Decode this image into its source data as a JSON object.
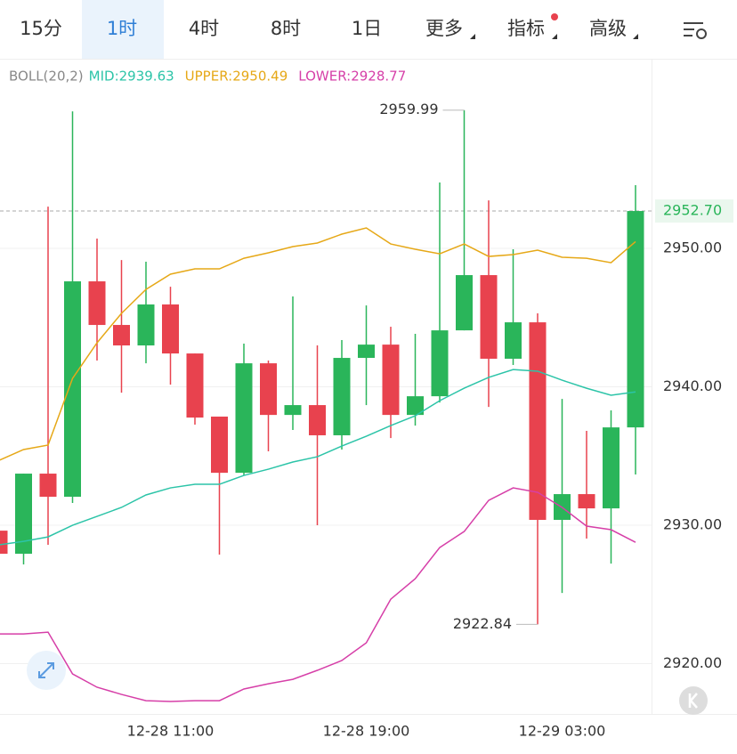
{
  "tabs": [
    "15分",
    "1时",
    "4时",
    "8时",
    "1日",
    "更多",
    "指标",
    "高级"
  ],
  "chart_data": {
    "type": "candlestick",
    "indicator": "BOLL(20,2)",
    "categories": [
      null,
      null,
      null,
      null,
      null,
      null,
      null,
      "12-28 11:00",
      null,
      null,
      null,
      null,
      null,
      null,
      null,
      "12-28 19:00",
      null,
      null,
      null,
      null,
      null,
      null,
      null,
      "12-29 03:00",
      null,
      null,
      null
    ],
    "open": [
      2929.61,
      2927.94,
      2933.73,
      2932.06,
      2947.62,
      2944.47,
      2942.99,
      2945.95,
      2942.41,
      2937.85,
      2933.79,
      2941.7,
      2937.97,
      2938.68,
      2936.5,
      2942.09,
      2943.05,
      2937.97,
      2939.32,
      2944.08,
      2948.07,
      2942.03,
      2944.66,
      2930.39,
      2932.25,
      2931.22,
      2937.07
    ],
    "high": [
      2933.86,
      2933.73,
      2953.02,
      2959.9,
      2950.71,
      2949.16,
      2949.04,
      2947.23,
      2942.41,
      2937.85,
      2943.12,
      2941.9,
      2946.53,
      2942.99,
      2943.38,
      2945.88,
      2944.34,
      2943.83,
      2954.76,
      2959.99,
      2953.47,
      2949.94,
      2945.31,
      2939.13,
      2936.82,
      2938.3,
      2954.57
    ],
    "low": [
      2927.94,
      2927.17,
      2928.59,
      2931.61,
      2941.9,
      2939.58,
      2941.7,
      2940.16,
      2937.27,
      2927.88,
      2933.6,
      2935.34,
      2936.88,
      2930.0,
      2935.47,
      2938.68,
      2936.3,
      2937.2,
      2938.87,
      2944.08,
      2938.55,
      2941.58,
      2922.84,
      2925.11,
      2929.04,
      2927.23,
      2933.67
    ],
    "close": [
      2927.94,
      2933.73,
      2932.06,
      2947.62,
      2944.47,
      2942.99,
      2945.95,
      2942.41,
      2937.78,
      2933.79,
      2941.7,
      2937.97,
      2938.68,
      2936.5,
      2942.09,
      2943.05,
      2937.97,
      2939.32,
      2944.08,
      2948.07,
      2942.03,
      2944.66,
      2930.39,
      2932.25,
      2931.22,
      2937.07,
      2952.7
    ],
    "up_color": "#2ab55a",
    "down_color": "#e8424e",
    "series": [
      {
        "name": "MID:2939.63",
        "color": "#2cc4a8",
        "values": [
          2928.59,
          2928.84,
          2929.16,
          2930.0,
          2930.64,
          2931.29,
          2932.19,
          2932.7,
          2932.96,
          2932.96,
          2933.6,
          2934.05,
          2934.57,
          2934.95,
          2935.72,
          2936.43,
          2937.2,
          2937.91,
          2939.0,
          2939.9,
          2940.68,
          2941.25,
          2941.13,
          2940.48,
          2939.9,
          2939.39,
          2939.63
        ]
      },
      {
        "name": "UPPER:2950.49",
        "color": "#e6a817",
        "values": [
          2934.69,
          2935.47,
          2935.79,
          2940.61,
          2943.18,
          2945.31,
          2947.04,
          2948.14,
          2948.52,
          2948.52,
          2949.29,
          2949.68,
          2950.13,
          2950.39,
          2951.03,
          2951.48,
          2950.32,
          2949.94,
          2949.61,
          2950.32,
          2949.42,
          2949.55,
          2949.87,
          2949.36,
          2949.29,
          2948.97,
          2950.49
        ]
      },
      {
        "name": "LOWER:2928.77",
        "color": "#d63fa8",
        "values": [
          2922.15,
          2922.15,
          2922.28,
          2919.26,
          2918.3,
          2917.78,
          2917.33,
          2917.27,
          2917.33,
          2917.33,
          2918.17,
          2918.55,
          2918.87,
          2919.52,
          2920.23,
          2921.51,
          2924.66,
          2926.14,
          2928.39,
          2929.55,
          2931.8,
          2932.7,
          2932.38,
          2931.29,
          2929.94,
          2929.68,
          2928.77
        ]
      }
    ],
    "ylim": [
      2916.37,
      2963.7
    ],
    "yticks": [
      {
        "value": 2920,
        "label": "2920.00"
      },
      {
        "value": 2930,
        "label": "2930.00"
      },
      {
        "value": 2940,
        "label": "2940.00"
      },
      {
        "value": 2950,
        "label": "2950.00"
      }
    ],
    "grid": true,
    "last_price": {
      "value": 2952.7,
      "label": "2952.70"
    },
    "annotations": [
      2959.99,
      2922.84
    ]
  }
}
